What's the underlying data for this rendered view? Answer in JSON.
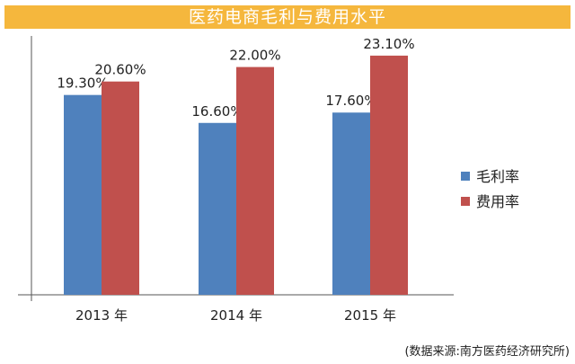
{
  "colors": {
    "title_band": "#f5b73d",
    "gross_margin": "#4f81bd",
    "expense_rate": "#c0504d",
    "axis": "#555555"
  },
  "chart_data": {
    "type": "bar",
    "title": "医药电商毛利与费用水平",
    "categories": [
      "2013 年",
      "2014 年",
      "2015 年"
    ],
    "series": [
      {
        "name": "毛利率",
        "values": [
          19.3,
          16.6,
          17.6
        ],
        "labels": [
          "19.30%",
          "16.60%",
          "17.60%"
        ]
      },
      {
        "name": "费用率",
        "values": [
          20.6,
          22.0,
          23.1
        ],
        "labels": [
          "20.60%",
          "22.00%",
          "23.10%"
        ]
      }
    ],
    "ylim": [
      0,
      25
    ],
    "grid": false,
    "legend": "right"
  },
  "source_note": "(数据来源:南方医药经济研究所)"
}
